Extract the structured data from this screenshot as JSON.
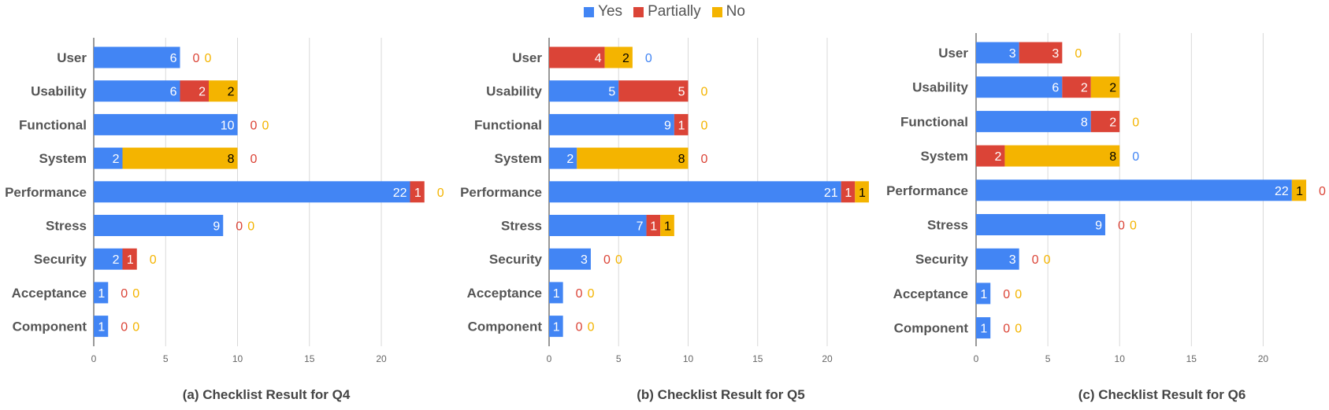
{
  "legend": {
    "items": [
      {
        "label": "Yes",
        "color": "#4285f4"
      },
      {
        "label": "Partially",
        "color": "#db4437"
      },
      {
        "label": "No",
        "color": "#f4b400"
      }
    ]
  },
  "captions": {
    "q4": "(a) Checklist Result for Q4",
    "q5": "(b) Checklist Result for Q5",
    "q6": "(c) Checklist Result for Q6"
  },
  "chart_data": [
    {
      "type": "bar",
      "orientation": "horizontal",
      "stacked": true,
      "title": "(a) Checklist Result for Q4",
      "categories": [
        "User",
        "Usability",
        "Functional",
        "System",
        "Performance",
        "Stress",
        "Security",
        "Acceptance",
        "Component"
      ],
      "series": [
        {
          "name": "Yes",
          "values": [
            6,
            6,
            10,
            2,
            22,
            9,
            2,
            1,
            1
          ]
        },
        {
          "name": "Partially",
          "values": [
            0,
            2,
            0,
            0,
            1,
            0,
            1,
            0,
            0
          ]
        },
        {
          "name": "No",
          "values": [
            0,
            2,
            0,
            8,
            0,
            0,
            0,
            0,
            0
          ]
        }
      ],
      "xlim": [
        0,
        25
      ],
      "xticks": [
        0,
        5,
        10,
        15,
        20
      ],
      "grid": true,
      "legend": "top-center"
    },
    {
      "type": "bar",
      "orientation": "horizontal",
      "stacked": true,
      "title": "(b) Checklist Result for Q5",
      "categories": [
        "User",
        "Usability",
        "Functional",
        "System",
        "Performance",
        "Stress",
        "Security",
        "Acceptance",
        "Component"
      ],
      "series": [
        {
          "name": "Yes",
          "values": [
            0,
            5,
            9,
            2,
            21,
            7,
            3,
            1,
            1
          ]
        },
        {
          "name": "Partially",
          "values": [
            4,
            5,
            1,
            0,
            1,
            1,
            0,
            0,
            0
          ]
        },
        {
          "name": "No",
          "values": [
            2,
            0,
            0,
            8,
            1,
            1,
            0,
            0,
            0
          ]
        }
      ],
      "xlim": [
        0,
        23
      ],
      "xticks": [
        0,
        5,
        10,
        15,
        20
      ],
      "grid": true,
      "legend": "top-center"
    },
    {
      "type": "bar",
      "orientation": "horizontal",
      "stacked": true,
      "title": "(c) Checklist Result for Q6",
      "categories": [
        "User",
        "Usability",
        "Functional",
        "System",
        "Performance",
        "Stress",
        "Security",
        "Acceptance",
        "Component"
      ],
      "series": [
        {
          "name": "Yes",
          "values": [
            3,
            6,
            8,
            0,
            22,
            9,
            3,
            1,
            1
          ]
        },
        {
          "name": "Partially",
          "values": [
            3,
            2,
            2,
            2,
            0,
            0,
            0,
            0,
            0
          ]
        },
        {
          "name": "No",
          "values": [
            0,
            2,
            0,
            8,
            1,
            0,
            0,
            0,
            0
          ]
        }
      ],
      "xlim": [
        0,
        25
      ],
      "xticks": [
        0,
        5,
        10,
        15,
        20
      ],
      "grid": true,
      "legend": "top-center"
    }
  ]
}
